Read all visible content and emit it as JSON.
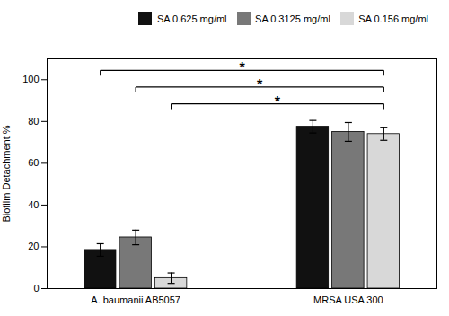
{
  "chart_data": {
    "type": "bar",
    "categories": [
      "A. baumanii AB5057",
      "MRSA USA 300"
    ],
    "series": [
      {
        "name": "SA 0.625 mg/ml",
        "color": "#111111",
        "values": [
          18.5,
          77.5
        ],
        "errors": [
          3.0,
          3.0
        ]
      },
      {
        "name": "SA 0.3125 mg/ml",
        "color": "#787878",
        "values": [
          24.5,
          75.0
        ],
        "errors": [
          3.5,
          4.5
        ]
      },
      {
        "name": "SA 0.156 mg/ml",
        "color": "#d8d8d8",
        "values": [
          5.0,
          74.0
        ],
        "errors": [
          2.5,
          3.0
        ]
      }
    ],
    "ylabel": "Biofilm Detachment %",
    "ylim": [
      0,
      110
    ],
    "yticks": [
      0,
      20,
      40,
      60,
      80,
      100
    ],
    "grid": false,
    "legend": "upper right",
    "annotations": [
      {
        "text": "*",
        "y": 104.5,
        "from": {
          "category": "A. baumanii AB5057",
          "series": "SA 0.625 mg/ml"
        },
        "to": {
          "category": "MRSA USA 300",
          "series": "SA 0.156 mg/ml"
        }
      },
      {
        "text": "*",
        "y": 96.5,
        "from": {
          "category": "A. baumanii AB5057",
          "series": "SA 0.3125 mg/ml"
        },
        "to": {
          "category": "MRSA USA 300",
          "series": "SA 0.156 mg/ml"
        }
      },
      {
        "text": "*",
        "y": 88.5,
        "from": {
          "category": "A. baumanii AB5057",
          "series": "SA 0.156 mg/ml"
        },
        "to": {
          "category": "MRSA USA 300",
          "series": "SA 0.156 mg/ml"
        }
      }
    ]
  }
}
